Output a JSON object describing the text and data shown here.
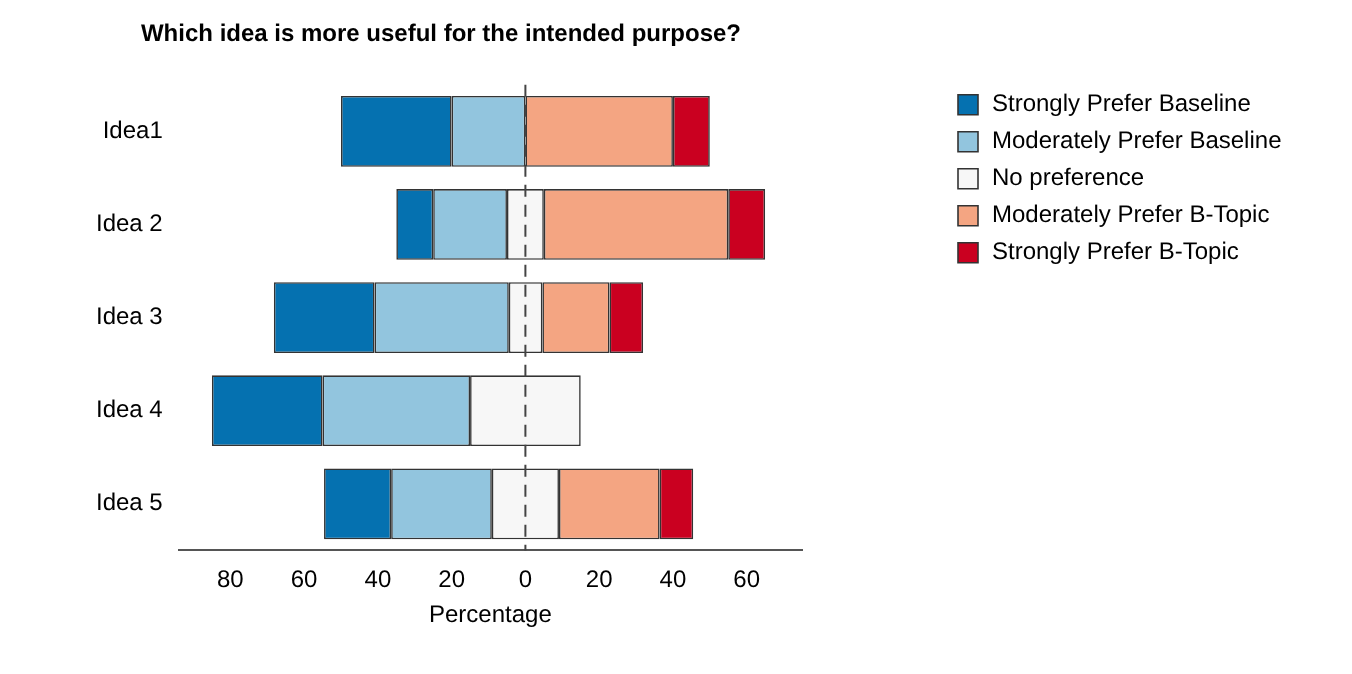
{
  "chart_data": {
    "type": "bar",
    "orientation": "horizontal",
    "title": "Which idea is more useful for the intended purpose?",
    "xlabel": "Percentage",
    "categories": [
      "Idea1",
      "Idea 2",
      "Idea 3",
      "Idea 4",
      "Idea 5"
    ],
    "series": [
      {
        "name": "Strongly Prefer Baseline",
        "color": "#0571b0",
        "values": [
          30,
          10,
          27.3,
          30,
          18.2
        ],
        "base": [
          -50,
          -35,
          -68.2,
          -85,
          -54.6
        ]
      },
      {
        "name": "Moderately Prefer Baseline",
        "color": "#92c5de",
        "values": [
          20,
          20,
          36.4,
          40,
          27.3
        ],
        "base": [
          -20,
          -25,
          -40.9,
          -55,
          -36.4
        ]
      },
      {
        "name": "No preference",
        "color": "#f7f7f7",
        "values": [
          null,
          10,
          9.1,
          30,
          18.2
        ],
        "base": [
          null,
          -5,
          -4.5,
          -15,
          -9.1
        ]
      },
      {
        "name": "Moderately Prefer B-Topic",
        "color": "#f4a582",
        "values": [
          40,
          50,
          18.2,
          null,
          27.3
        ],
        "base": [
          0,
          5,
          4.6,
          null,
          9.1
        ]
      },
      {
        "name": "Strongly Prefer B-Topic",
        "color": "#ca0020",
        "values": [
          10,
          10,
          9.1,
          null,
          9.1
        ],
        "base": [
          40,
          55,
          22.8,
          null,
          36.4
        ]
      }
    ],
    "xlim": [
      -94,
      75
    ],
    "xticks": [
      {
        "value": -80,
        "label": "80"
      },
      {
        "value": -60,
        "label": "60"
      },
      {
        "value": -40,
        "label": "40"
      },
      {
        "value": -20,
        "label": "20"
      },
      0,
      20,
      40,
      60
    ],
    "ref_lines": [
      {
        "axis": "x",
        "value": 0,
        "line_style": "dashed",
        "color": "#444444"
      }
    ],
    "grid": false,
    "legend": "top right"
  }
}
